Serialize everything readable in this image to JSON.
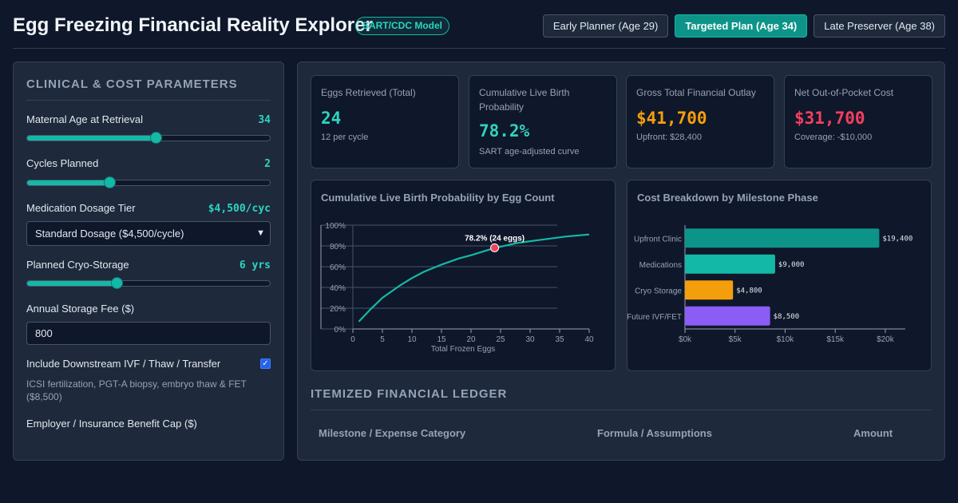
{
  "header": {
    "title": "Egg Freezing Financial Reality Explorer",
    "badge": "SART/CDC Model",
    "presets": [
      "Early Planner (Age 29)",
      "Targeted Plan (Age 34)",
      "Late Preserver (Age 38)"
    ],
    "active_preset": "Targeted Plan (Age 34)"
  },
  "params": {
    "title": "CLINICAL & COST PARAMETERS",
    "age": {
      "label": "Maternal Age at Retrieval",
      "value": "34",
      "fraction": 0.53
    },
    "cycles": {
      "label": "Cycles Planned",
      "value": "2",
      "fraction": 0.34
    },
    "medication": {
      "label": "Medication Dosage Tier",
      "value": "$4,500/cyc",
      "selected": "Standard Dosage ($4,500/cycle)"
    },
    "storage": {
      "label": "Planned Cryo-Storage",
      "value": "6 yrs",
      "fraction": 0.37
    },
    "storage_fee": {
      "label": "Annual Storage Fee ($)",
      "value": "800"
    },
    "downstream": {
      "label": "Include Downstream IVF / Thaw / Transfer",
      "checked": true,
      "hint": "ICSI fertilization, PGT-A biopsy, embryo thaw & FET ($8,500)"
    },
    "benefit": {
      "label": "Employer / Insurance Benefit Cap ($)"
    }
  },
  "summary": [
    {
      "label": "Eggs Retrieved (Total)",
      "value": "24",
      "sub": "12 per cycle",
      "color": "#2dd4bf"
    },
    {
      "label": "Cumulative Live Birth Probability",
      "value": "78.2%",
      "sub": "SART age-adjusted curve",
      "color": "#2dd4bf"
    },
    {
      "label": "Gross Total Financial Outlay",
      "value": "$41,700",
      "sub": "Upfront: $28,400",
      "color": "#f59e0b"
    },
    {
      "label": "Net Out-of-Pocket Cost",
      "value": "$31,700",
      "sub": "Coverage: -$10,000",
      "color": "#f43f5e"
    }
  ],
  "chart_data": [
    {
      "type": "line",
      "title": "Cumulative Live Birth Probability by Egg Count",
      "xlabel": "Total Frozen Eggs",
      "ylabel": "",
      "xlim": [
        0,
        40
      ],
      "ylim": [
        0,
        100
      ],
      "x_ticks": [
        "0",
        "5",
        "10",
        "15",
        "20",
        "25",
        "30",
        "35",
        "40"
      ],
      "y_ticks": [
        "0%",
        "20%",
        "40%",
        "60%",
        "80%",
        "100%"
      ],
      "x": [
        1,
        3,
        5,
        8,
        10,
        12,
        15,
        18,
        20,
        24,
        28,
        32,
        36,
        40
      ],
      "y": [
        7,
        19,
        30,
        42,
        49,
        55,
        62,
        68,
        71,
        78,
        83,
        86,
        89,
        91
      ],
      "grid": true,
      "highlight": {
        "x": 24,
        "y": 78.2,
        "label": "78.2% (24 eggs)"
      },
      "color": "#14b8a6",
      "marker_color": "#f43f5e"
    },
    {
      "type": "bar",
      "orientation": "horizontal",
      "title": "Cost Breakdown by Milestone Phase",
      "categories": [
        "Upfront Clinic",
        "Medications",
        "Cryo Storage",
        "Future IVF/FET"
      ],
      "values": [
        19400,
        9000,
        4800,
        8500
      ],
      "value_labels": [
        "$19,400",
        "$9,000",
        "$4,800",
        "$8,500"
      ],
      "colors": [
        "#0d9488",
        "#14b8a6",
        "#f59e0b",
        "#8b5cf6"
      ],
      "xlim": [
        0,
        22000
      ],
      "x_ticks": [
        "$0k",
        "$5k",
        "$10k",
        "$15k",
        "$20k"
      ],
      "x_tick_values": [
        0,
        5000,
        10000,
        15000,
        20000
      ]
    }
  ],
  "ledger": {
    "title": "ITEMIZED FINANCIAL LEDGER",
    "columns": [
      "Milestone / Expense Category",
      "Formula / Assumptions",
      "Amount"
    ]
  }
}
